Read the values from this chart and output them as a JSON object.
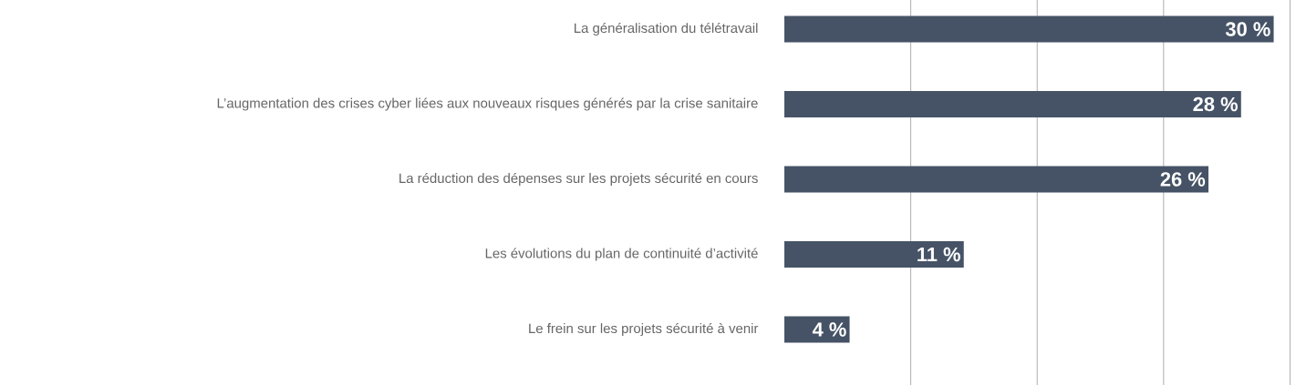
{
  "chart_data": {
    "type": "bar",
    "orientation": "horizontal",
    "categories": [
      "La généralisation du télétravail",
      "L’augmentation des crises cyber liées aux nouveaux risques générés par la crise sanitaire",
      "La réduction des dépenses sur les projets sécurité en cours",
      "Les évolutions du plan de continuité d’activité",
      "Le frein sur les projets sécurité à venir"
    ],
    "values": [
      30,
      28,
      26,
      11,
      4
    ],
    "value_labels": [
      "30 %",
      "28 %",
      "26 %",
      "11 %",
      "4 %"
    ],
    "color": "#465366",
    "xlim": [
      0,
      31.2
    ],
    "xticks": [
      {
        "value": 7.75,
        "label": null
      },
      {
        "value": 15.5,
        "label": null
      },
      {
        "value": 23.25,
        "label": null
      },
      {
        "value": 31,
        "label": null
      }
    ],
    "grid": "x"
  }
}
